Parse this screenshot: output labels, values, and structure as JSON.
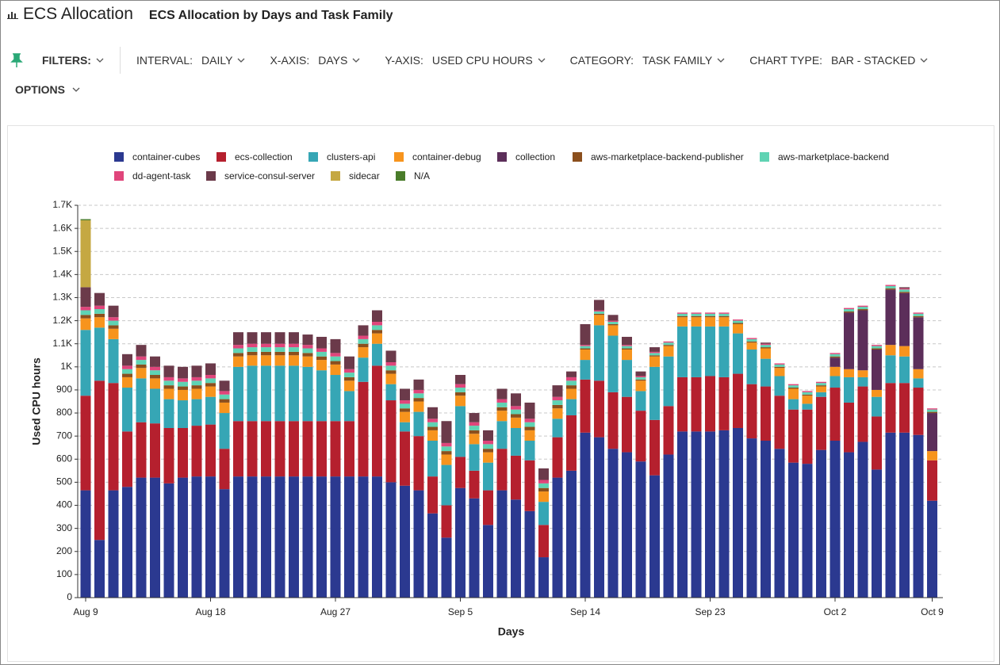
{
  "header": {
    "app_title": "ECS Allocation",
    "report_title": "ECS Allocation by Days and Task Family"
  },
  "toolbar": {
    "filters": "FILTERS:",
    "items": [
      {
        "label": "INTERVAL:",
        "value": "DAILY"
      },
      {
        "label": "X-AXIS:",
        "value": "DAYS"
      },
      {
        "label": "Y-AXIS:",
        "value": "USED CPU HOURS"
      },
      {
        "label": "CATEGORY:",
        "value": "TASK FAMILY"
      },
      {
        "label": "CHART TYPE:",
        "value": "BAR - STACKED"
      }
    ],
    "options": "OPTIONS"
  },
  "chart_data": {
    "type": "stacked-bar",
    "x_label": "Days",
    "y_label": "Used CPU hours",
    "categories": [
      "Aug 9",
      null,
      null,
      null,
      null,
      null,
      null,
      null,
      null,
      "Aug 18",
      null,
      null,
      null,
      null,
      null,
      null,
      null,
      null,
      "Aug 27",
      null,
      null,
      null,
      null,
      null,
      null,
      null,
      null,
      "Sep 5",
      null,
      null,
      null,
      null,
      null,
      null,
      null,
      null,
      "Sep 14",
      null,
      null,
      null,
      null,
      null,
      null,
      null,
      null,
      "Sep 23",
      null,
      null,
      null,
      null,
      null,
      null,
      null,
      null,
      "Oct 2",
      null,
      null,
      null,
      null,
      null,
      null,
      "Oct 9"
    ],
    "ylim": [
      0,
      1700
    ],
    "yticks": [
      0,
      100,
      200,
      300,
      400,
      500,
      600,
      700,
      800,
      900,
      {
        "value": 1000,
        "label": "1K"
      },
      {
        "value": 1100,
        "label": "1.1K"
      },
      {
        "value": 1200,
        "label": "1.2K"
      },
      {
        "value": 1300,
        "label": "1.3K"
      },
      {
        "value": 1400,
        "label": "1.4K"
      },
      {
        "value": 1500,
        "label": "1.5K"
      },
      {
        "value": 1600,
        "label": "1.6K"
      },
      {
        "value": 1700,
        "label": "1.7K"
      }
    ],
    "grid": true,
    "series": [
      {
        "name": "container-cubes",
        "color": "#2b3990",
        "values": [
          465,
          250,
          465,
          480,
          520,
          520,
          495,
          520,
          525,
          525,
          470,
          525,
          525,
          525,
          525,
          525,
          525,
          525,
          525,
          525,
          525,
          525,
          500,
          485,
          465,
          365,
          260,
          475,
          430,
          315,
          465,
          425,
          375,
          175,
          520,
          550,
          715,
          695,
          645,
          630,
          590,
          530,
          620,
          720,
          720,
          720,
          725,
          735,
          690,
          680,
          645,
          585,
          580,
          640,
          680,
          630,
          675,
          555,
          715,
          715,
          705,
          420
        ]
      },
      {
        "name": "ecs-collection",
        "color": "#b5202e",
        "values": [
          410,
          690,
          465,
          240,
          240,
          235,
          240,
          215,
          220,
          225,
          175,
          240,
          240,
          240,
          240,
          240,
          240,
          240,
          240,
          240,
          410,
          480,
          355,
          235,
          235,
          160,
          140,
          135,
          120,
          150,
          180,
          190,
          220,
          140,
          175,
          240,
          230,
          245,
          245,
          240,
          220,
          240,
          210,
          235,
          235,
          240,
          230,
          235,
          235,
          235,
          230,
          230,
          235,
          230,
          230,
          215,
          240,
          230,
          215,
          215,
          205,
          175
        ]
      },
      {
        "name": "clusters-api",
        "color": "#36a6b5",
        "values": [
          285,
          230,
          190,
          190,
          190,
          150,
          125,
          120,
          115,
          120,
          155,
          235,
          240,
          240,
          240,
          240,
          235,
          220,
          200,
          130,
          105,
          95,
          70,
          40,
          105,
          155,
          175,
          220,
          115,
          120,
          120,
          120,
          85,
          100,
          80,
          70,
          85,
          240,
          245,
          160,
          85,
          230,
          215,
          220,
          220,
          215,
          220,
          175,
          150,
          120,
          85,
          45,
          25,
          20,
          50,
          110,
          40,
          85,
          120,
          115,
          40,
          0
        ]
      },
      {
        "name": "container-debug",
        "color": "#f7941d",
        "values": [
          50,
          45,
          45,
          45,
          45,
          45,
          45,
          45,
          45,
          45,
          45,
          45,
          45,
          45,
          45,
          45,
          45,
          45,
          45,
          45,
          45,
          45,
          45,
          45,
          45,
          45,
          45,
          45,
          45,
          45,
          45,
          45,
          45,
          45,
          45,
          45,
          45,
          45,
          45,
          45,
          45,
          45,
          45,
          40,
          40,
          40,
          40,
          40,
          30,
          45,
          35,
          45,
          35,
          25,
          40,
          35,
          30,
          30,
          45,
          45,
          40,
          40
        ]
      },
      {
        "name": "collection",
        "color": "#5c2e5a",
        "values": [
          0,
          0,
          0,
          0,
          0,
          0,
          0,
          0,
          0,
          0,
          0,
          0,
          0,
          0,
          0,
          0,
          0,
          0,
          0,
          0,
          0,
          0,
          0,
          0,
          0,
          0,
          0,
          0,
          0,
          0,
          0,
          0,
          0,
          0,
          0,
          0,
          0,
          0,
          0,
          0,
          0,
          0,
          0,
          0,
          0,
          0,
          0,
          0,
          0,
          0,
          0,
          0,
          0,
          0,
          40,
          245,
          260,
          175,
          240,
          230,
          225,
          165
        ]
      },
      {
        "name": "aws-marketplace-backend-publisher",
        "color": "#8b4f1d",
        "values": [
          15,
          15,
          15,
          15,
          15,
          15,
          15,
          15,
          15,
          15,
          15,
          15,
          15,
          15,
          15,
          15,
          15,
          15,
          15,
          15,
          15,
          15,
          15,
          15,
          15,
          15,
          15,
          15,
          15,
          15,
          15,
          15,
          15,
          15,
          15,
          15,
          5,
          5,
          5,
          5,
          5,
          5,
          5,
          5,
          5,
          5,
          5,
          5,
          5,
          5,
          5,
          5,
          5,
          5,
          5,
          5,
          5,
          5,
          5,
          5,
          5,
          5
        ]
      },
      {
        "name": "aws-marketplace-backend",
        "color": "#5fd3b3",
        "values": [
          20,
          20,
          20,
          20,
          20,
          20,
          20,
          20,
          20,
          20,
          20,
          20,
          20,
          20,
          20,
          20,
          20,
          20,
          20,
          20,
          20,
          20,
          20,
          20,
          20,
          20,
          20,
          20,
          20,
          20,
          20,
          20,
          20,
          20,
          20,
          20,
          10,
          10,
          10,
          10,
          10,
          10,
          10,
          10,
          10,
          10,
          10,
          10,
          10,
          10,
          10,
          10,
          10,
          10,
          10,
          10,
          10,
          10,
          10,
          10,
          10,
          10
        ]
      },
      {
        "name": "dd-agent-task",
        "color": "#e0457b",
        "values": [
          15,
          15,
          15,
          15,
          15,
          15,
          15,
          15,
          15,
          15,
          15,
          15,
          15,
          15,
          15,
          15,
          15,
          15,
          15,
          15,
          15,
          15,
          15,
          15,
          15,
          15,
          15,
          15,
          15,
          15,
          15,
          15,
          15,
          15,
          15,
          15,
          5,
          5,
          5,
          5,
          5,
          5,
          5,
          5,
          5,
          5,
          5,
          5,
          5,
          5,
          5,
          5,
          5,
          5,
          5,
          5,
          5,
          5,
          5,
          5,
          5,
          5
        ]
      },
      {
        "name": "service-consul-server",
        "color": "#6b3a4a",
        "values": [
          85,
          55,
          50,
          50,
          50,
          45,
          50,
          50,
          50,
          50,
          45,
          55,
          50,
          50,
          50,
          50,
          45,
          50,
          60,
          55,
          45,
          50,
          50,
          50,
          45,
          50,
          95,
          40,
          40,
          45,
          45,
          55,
          70,
          50,
          50,
          25,
          90,
          45,
          25,
          35,
          20,
          20,
          0,
          0,
          0,
          0,
          0,
          0,
          0,
          5,
          0,
          0,
          0,
          0,
          0,
          0,
          0,
          0,
          0,
          5,
          0,
          0
        ]
      },
      {
        "name": "sidecar",
        "color": "#c5a842",
        "values": [
          290,
          0,
          0,
          0,
          0,
          0,
          0,
          0,
          0,
          0,
          0,
          0,
          0,
          0,
          0,
          0,
          0,
          0,
          0,
          0,
          0,
          0,
          0,
          0,
          0,
          0,
          0,
          0,
          0,
          0,
          0,
          0,
          0,
          0,
          0,
          0,
          0,
          0,
          0,
          0,
          0,
          0,
          0,
          0,
          0,
          0,
          0,
          0,
          0,
          0,
          0,
          0,
          0,
          0,
          0,
          0,
          0,
          0,
          0,
          0,
          0,
          0
        ]
      },
      {
        "name": "N/A",
        "color": "#4a7c2a",
        "values": [
          5,
          0,
          0,
          0,
          0,
          0,
          0,
          0,
          0,
          0,
          0,
          0,
          0,
          0,
          0,
          0,
          0,
          0,
          0,
          0,
          0,
          0,
          0,
          0,
          0,
          0,
          0,
          0,
          0,
          0,
          0,
          0,
          0,
          0,
          0,
          0,
          0,
          0,
          0,
          0,
          0,
          0,
          0,
          0,
          0,
          0,
          0,
          0,
          0,
          0,
          0,
          0,
          0,
          0,
          0,
          0,
          0,
          0,
          0,
          0,
          0,
          0
        ]
      }
    ]
  }
}
